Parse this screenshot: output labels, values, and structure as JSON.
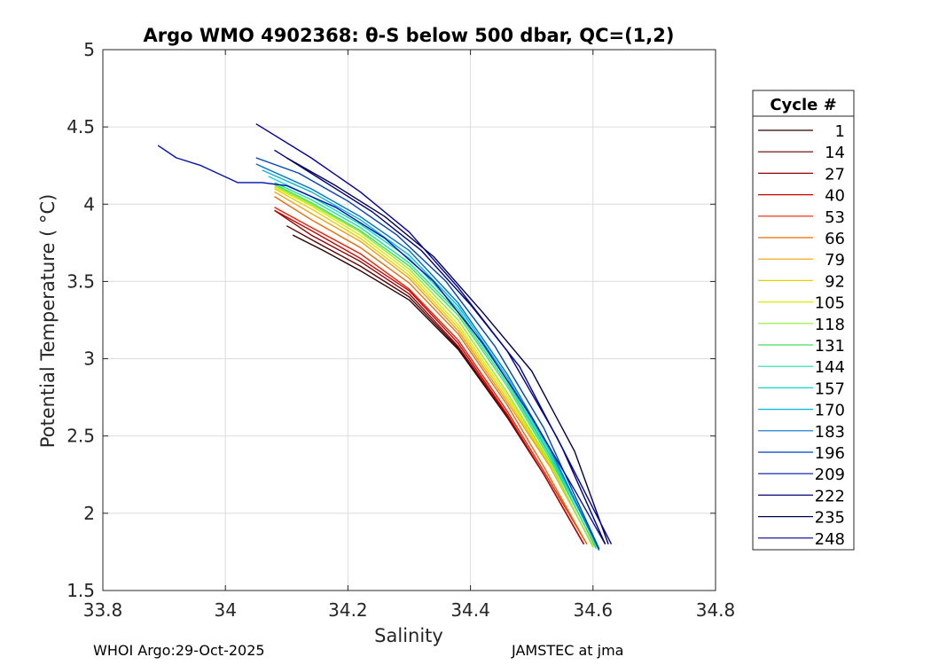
{
  "chart_data": {
    "type": "line",
    "title": "Argo WMO 4902368: θ-S below 500 dbar,  QC=(1,2)",
    "xlabel": "Salinity",
    "ylabel": "Potential Temperature ( °C)",
    "xlim": [
      33.8,
      34.8
    ],
    "ylim": [
      1.5,
      5
    ],
    "xticks": [
      33.8,
      34,
      34.2,
      34.4,
      34.6,
      34.8
    ],
    "xtick_labels": [
      "33.8",
      "34",
      "34.2",
      "34.4",
      "34.6",
      "34.8"
    ],
    "yticks": [
      1.5,
      2,
      2.5,
      3,
      3.5,
      4,
      4.5,
      5
    ],
    "ytick_labels": [
      "1.5",
      "2",
      "2.5",
      "3",
      "3.5",
      "4",
      "4.5",
      "5"
    ],
    "grid": true,
    "legend": {
      "title": "Cycle #",
      "placement": "right-outside",
      "entries": [
        {
          "label": "1",
          "color": "#2a0000"
        },
        {
          "label": "14",
          "color": "#5e0000"
        },
        {
          "label": "27",
          "color": "#980000"
        },
        {
          "label": "40",
          "color": "#c80000"
        },
        {
          "label": "53",
          "color": "#e82000"
        },
        {
          "label": "66",
          "color": "#ec6a00"
        },
        {
          "label": "79",
          "color": "#eea000"
        },
        {
          "label": "92",
          "color": "#e8d000"
        },
        {
          "label": "105",
          "color": "#d8ec00"
        },
        {
          "label": "118",
          "color": "#90ec30"
        },
        {
          "label": "131",
          "color": "#40e060"
        },
        {
          "label": "144",
          "color": "#20e0a0"
        },
        {
          "label": "157",
          "color": "#10d8c8"
        },
        {
          "label": "170",
          "color": "#00b8d8"
        },
        {
          "label": "183",
          "color": "#0070c8"
        },
        {
          "label": "196",
          "color": "#0040c0"
        },
        {
          "label": "209",
          "color": "#0010b0"
        },
        {
          "label": "222",
          "color": "#000080"
        },
        {
          "label": "235",
          "color": "#000050"
        },
        {
          "label": "248",
          "color": "#00009a"
        }
      ]
    },
    "series": [
      {
        "name": "1",
        "color": "#2a0000",
        "x": [
          34.11,
          34.16,
          34.22,
          34.3,
          34.38,
          34.46,
          34.52,
          34.585
        ],
        "y": [
          3.8,
          3.7,
          3.57,
          3.38,
          3.06,
          2.62,
          2.25,
          1.8
        ]
      },
      {
        "name": "14",
        "color": "#5e0000",
        "x": [
          34.1,
          34.15,
          34.22,
          34.3,
          34.38,
          34.46,
          34.52,
          34.585
        ],
        "y": [
          3.86,
          3.75,
          3.6,
          3.4,
          3.07,
          2.62,
          2.25,
          1.8
        ]
      },
      {
        "name": "27",
        "color": "#980000",
        "x": [
          34.08,
          34.14,
          34.22,
          34.3,
          34.38,
          34.46,
          34.52,
          34.585
        ],
        "y": [
          3.96,
          3.8,
          3.63,
          3.42,
          3.08,
          2.63,
          2.25,
          1.8
        ]
      },
      {
        "name": "40",
        "color": "#c80000",
        "x": [
          34.08,
          34.14,
          34.22,
          34.3,
          34.38,
          34.46,
          34.52,
          34.585
        ],
        "y": [
          3.96,
          3.83,
          3.65,
          3.44,
          3.1,
          2.64,
          2.25,
          1.8
        ]
      },
      {
        "name": "53",
        "color": "#e82000",
        "x": [
          34.08,
          34.14,
          34.22,
          34.3,
          34.38,
          34.46,
          34.52,
          34.59
        ],
        "y": [
          3.98,
          3.85,
          3.68,
          3.45,
          3.12,
          2.66,
          2.27,
          1.8
        ]
      },
      {
        "name": "66",
        "color": "#ec6a00",
        "x": [
          34.08,
          34.14,
          34.22,
          34.3,
          34.38,
          34.46,
          34.52,
          34.59
        ],
        "y": [
          4.05,
          3.9,
          3.72,
          3.49,
          3.16,
          2.7,
          2.3,
          1.8
        ]
      },
      {
        "name": "79",
        "color": "#eea000",
        "x": [
          34.08,
          34.14,
          34.22,
          34.3,
          34.38,
          34.46,
          34.53,
          34.6
        ],
        "y": [
          4.08,
          3.94,
          3.76,
          3.52,
          3.18,
          2.72,
          2.3,
          1.79
        ]
      },
      {
        "name": "92",
        "color": "#e8d000",
        "x": [
          34.08,
          34.14,
          34.22,
          34.3,
          34.38,
          34.46,
          34.53,
          34.6
        ],
        "y": [
          4.1,
          3.97,
          3.78,
          3.54,
          3.2,
          2.74,
          2.31,
          1.79
        ]
      },
      {
        "name": "105",
        "color": "#d8ec00",
        "x": [
          34.08,
          34.14,
          34.22,
          34.3,
          34.38,
          34.46,
          34.53,
          34.6
        ],
        "y": [
          4.11,
          3.99,
          3.8,
          3.56,
          3.22,
          2.76,
          2.32,
          1.78
        ]
      },
      {
        "name": "118",
        "color": "#90ec30",
        "x": [
          34.08,
          34.14,
          34.22,
          34.3,
          34.38,
          34.46,
          34.53,
          34.6
        ],
        "y": [
          4.12,
          4.0,
          3.82,
          3.58,
          3.25,
          2.78,
          2.33,
          1.78
        ]
      },
      {
        "name": "131",
        "color": "#40e060",
        "x": [
          34.08,
          34.14,
          34.22,
          34.3,
          34.38,
          34.46,
          34.53,
          34.605
        ],
        "y": [
          4.13,
          4.01,
          3.83,
          3.6,
          3.28,
          2.82,
          2.35,
          1.78
        ]
      },
      {
        "name": "144",
        "color": "#20e0a0",
        "x": [
          34.08,
          34.14,
          34.22,
          34.3,
          34.38,
          34.46,
          34.53,
          34.605
        ],
        "y": [
          4.14,
          4.03,
          3.85,
          3.62,
          3.3,
          2.84,
          2.37,
          1.77
        ]
      },
      {
        "name": "157",
        "color": "#10d8c8",
        "x": [
          34.07,
          34.14,
          34.22,
          34.3,
          34.38,
          34.46,
          34.53,
          34.61
        ],
        "y": [
          4.18,
          4.05,
          3.87,
          3.65,
          3.32,
          2.86,
          2.38,
          1.77
        ]
      },
      {
        "name": "170",
        "color": "#00b8d8",
        "x": [
          34.06,
          34.14,
          34.22,
          34.3,
          34.38,
          34.46,
          34.53,
          34.61
        ],
        "y": [
          4.22,
          4.08,
          3.9,
          3.67,
          3.34,
          2.88,
          2.4,
          1.76
        ]
      },
      {
        "name": "183",
        "color": "#0070c8",
        "x": [
          34.05,
          34.14,
          34.22,
          34.3,
          34.38,
          34.46,
          34.53,
          34.61
        ],
        "y": [
          4.26,
          4.1,
          3.92,
          3.7,
          3.36,
          2.9,
          2.42,
          1.76
        ]
      },
      {
        "name": "196",
        "color": "#0040c0",
        "x": [
          34.05,
          34.12,
          34.2,
          34.28,
          34.36,
          34.44,
          34.52,
          34.61
        ],
        "y": [
          4.3,
          4.2,
          4.02,
          3.8,
          3.5,
          3.08,
          2.55,
          1.77
        ]
      },
      {
        "name": "209",
        "color": "#0010b0",
        "x": [
          33.89,
          33.92,
          33.96,
          34.02,
          34.06,
          34.1,
          34.18,
          34.26,
          34.34,
          34.42,
          34.5,
          34.57,
          34.62
        ],
        "y": [
          4.38,
          4.3,
          4.25,
          4.14,
          4.14,
          4.12,
          3.98,
          3.78,
          3.5,
          3.1,
          2.62,
          2.15,
          1.8
        ]
      },
      {
        "name": "222",
        "color": "#000080",
        "x": [
          34.08,
          34.16,
          34.24,
          34.32,
          34.4,
          34.48,
          34.55,
          34.62
        ],
        "y": [
          4.35,
          4.15,
          3.95,
          3.7,
          3.35,
          2.95,
          2.42,
          1.8
        ]
      },
      {
        "name": "235",
        "color": "#000050",
        "x": [
          34.1,
          34.18,
          34.26,
          34.34,
          34.42,
          34.5,
          34.57,
          34.625
        ],
        "y": [
          4.3,
          4.12,
          3.92,
          3.66,
          3.3,
          2.92,
          2.4,
          1.8
        ]
      },
      {
        "name": "248",
        "color": "#00009a",
        "x": [
          34.05,
          34.14,
          34.22,
          34.3,
          34.38,
          34.46,
          34.54,
          34.63
        ],
        "y": [
          4.52,
          4.3,
          4.08,
          3.82,
          3.46,
          3.05,
          2.5,
          1.8
        ]
      }
    ]
  },
  "footer": {
    "left": "WHOI Argo:29-Oct-2025",
    "right": "JAMSTEC at jma"
  }
}
